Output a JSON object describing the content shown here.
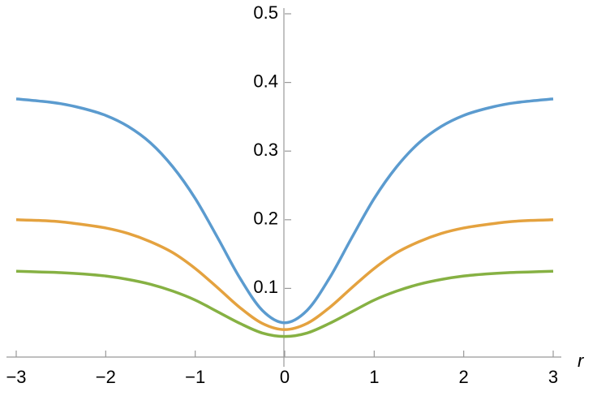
{
  "chart_data": {
    "type": "line",
    "x_label": "r",
    "x": [
      -3,
      -2.75,
      -2.5,
      -2.25,
      -2,
      -1.75,
      -1.5,
      -1.25,
      -1,
      -0.75,
      -0.5,
      -0.25,
      0,
      0.25,
      0.5,
      0.75,
      1,
      1.25,
      1.5,
      1.75,
      2,
      2.25,
      2.5,
      2.75,
      3
    ],
    "series": [
      {
        "color": "#5b9bcf",
        "values": [
          0.376,
          0.373,
          0.369,
          0.362,
          0.352,
          0.336,
          0.312,
          0.277,
          0.231,
          0.174,
          0.115,
          0.068,
          0.05,
          0.068,
          0.115,
          0.174,
          0.231,
          0.277,
          0.312,
          0.336,
          0.352,
          0.362,
          0.369,
          0.373,
          0.376
        ]
      },
      {
        "color": "#e4a23f",
        "values": [
          0.2,
          0.199,
          0.197,
          0.193,
          0.188,
          0.18,
          0.168,
          0.152,
          0.129,
          0.101,
          0.072,
          0.049,
          0.04,
          0.049,
          0.072,
          0.101,
          0.129,
          0.152,
          0.168,
          0.18,
          0.188,
          0.193,
          0.197,
          0.199,
          0.2
        ]
      },
      {
        "color": "#86b143",
        "values": [
          0.125,
          0.124,
          0.123,
          0.121,
          0.118,
          0.113,
          0.106,
          0.096,
          0.083,
          0.066,
          0.049,
          0.035,
          0.03,
          0.035,
          0.049,
          0.066,
          0.083,
          0.096,
          0.106,
          0.113,
          0.118,
          0.121,
          0.123,
          0.124,
          0.125
        ]
      }
    ],
    "xlim": [
      -3,
      3
    ],
    "ylim": [
      0,
      0.5
    ],
    "xticks": [
      {
        "value": -3,
        "label": "−3"
      },
      {
        "value": -2,
        "label": "−2"
      },
      {
        "value": -1,
        "label": "−1"
      },
      0,
      1,
      2,
      3
    ],
    "yticks": [
      0.1,
      0.2,
      0.3,
      0.4,
      0.5
    ]
  }
}
